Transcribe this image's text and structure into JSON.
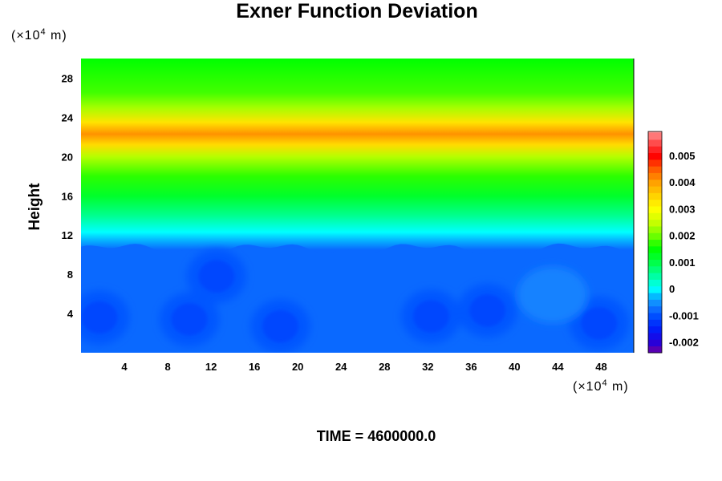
{
  "chart_data": {
    "type": "heatmap",
    "title": "Exner Function Deviation",
    "ylabel": "Height",
    "x_unit": {
      "prefix": "(×10",
      "exp": "4",
      "suffix": " m)"
    },
    "y_unit": {
      "prefix": "(×10",
      "exp": "4",
      "suffix": " m)"
    },
    "xlim": [
      0,
      51
    ],
    "ylim": [
      0,
      30
    ],
    "x_ticks": [
      {
        "value": 4,
        "label": "4"
      },
      {
        "value": 8,
        "label": "8"
      },
      {
        "value": 12,
        "label": "12"
      },
      {
        "value": 16,
        "label": "16"
      },
      {
        "value": 20,
        "label": "20"
      },
      {
        "value": 24,
        "label": "24"
      },
      {
        "value": 28,
        "label": "28"
      },
      {
        "value": 32,
        "label": "32"
      },
      {
        "value": 36,
        "label": "36"
      },
      {
        "value": 40,
        "label": "40"
      },
      {
        "value": 44,
        "label": "44"
      },
      {
        "value": 48,
        "label": "48"
      }
    ],
    "y_ticks": [
      {
        "value": 4,
        "label": "4"
      },
      {
        "value": 8,
        "label": "8"
      },
      {
        "value": 12,
        "label": "12"
      },
      {
        "value": 16,
        "label": "16"
      },
      {
        "value": 20,
        "label": "20"
      },
      {
        "value": 24,
        "label": "24"
      },
      {
        "value": 28,
        "label": "28"
      }
    ],
    "colorbar": {
      "min": -0.0024,
      "max": 0.0059,
      "step": 0.00025,
      "ticks": [
        {
          "value": -0.002,
          "label": "-0.002"
        },
        {
          "value": -0.001,
          "label": "-0.001"
        },
        {
          "value": 0,
          "label": "0"
        },
        {
          "value": 0.001,
          "label": "0.001"
        },
        {
          "value": 0.002,
          "label": "0.002"
        },
        {
          "value": 0.003,
          "label": "0.003"
        },
        {
          "value": 0.004,
          "label": "0.004"
        },
        {
          "value": 0.005,
          "label": "0.005"
        }
      ]
    },
    "vertical_profile": [
      {
        "height": 0,
        "value": -0.0008
      },
      {
        "height": 10.5,
        "value": -0.0008
      },
      {
        "height": 11.5,
        "value": -0.0003
      },
      {
        "height": 12.3,
        "value": 0.0
      },
      {
        "height": 14,
        "value": 0.0006
      },
      {
        "height": 16,
        "value": 0.0012
      },
      {
        "height": 18,
        "value": 0.0017
      },
      {
        "height": 20,
        "value": 0.0024
      },
      {
        "height": 21.2,
        "value": 0.0034
      },
      {
        "height": 22.3,
        "value": 0.0041
      },
      {
        "height": 23.5,
        "value": 0.0033
      },
      {
        "height": 25,
        "value": 0.0023
      },
      {
        "height": 26.5,
        "value": 0.0018
      },
      {
        "height": 30,
        "value": 0.0015
      }
    ],
    "lower_anomalies": [
      {
        "x": 1.7,
        "y": 3.6,
        "value": -0.0011
      },
      {
        "x": 10,
        "y": 3.4,
        "value": -0.0011
      },
      {
        "x": 18.4,
        "y": 2.7,
        "value": -0.0011
      },
      {
        "x": 32.3,
        "y": 3.7,
        "value": -0.0011
      },
      {
        "x": 37.5,
        "y": 4.3,
        "value": -0.0011
      },
      {
        "x": 47.8,
        "y": 3.0,
        "value": -0.0011
      },
      {
        "x": 12.5,
        "y": 7.8,
        "value": -0.0011
      },
      {
        "x": 43.5,
        "y": 5.9,
        "value": -0.0005
      }
    ],
    "time_label": "TIME = 4600000.0"
  }
}
